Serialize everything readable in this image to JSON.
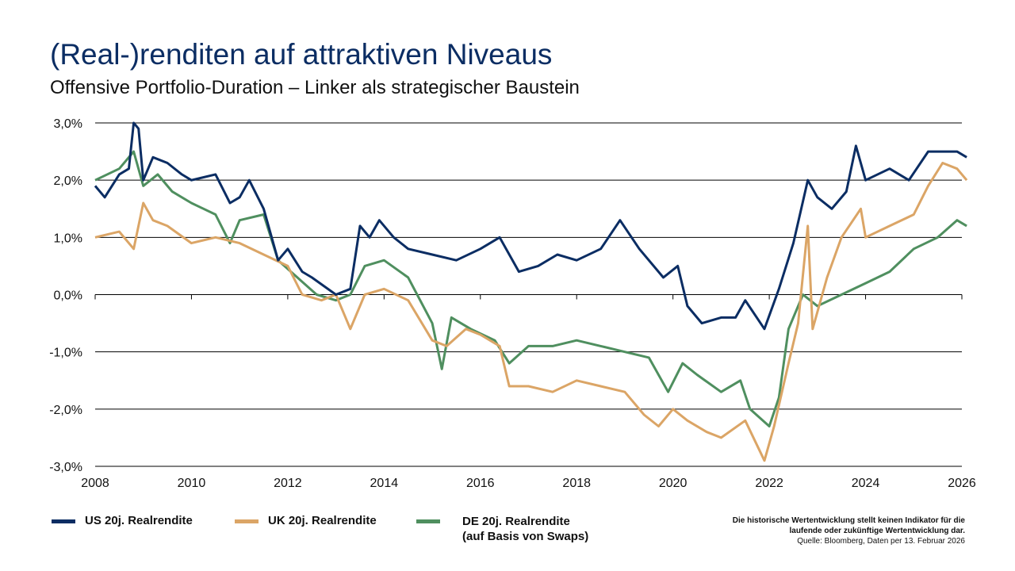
{
  "title": "(Real-)renditen auf attraktiven Niveaus",
  "subtitle": "Offensive Portfolio-Duration – Linker als strategischer Baustein",
  "note": {
    "line1": "Die historische Wertentwicklung stellt keinen Indikator für die",
    "line2": "laufende oder zukünftige Wertentwicklung dar.",
    "source": "Quelle: Bloomberg, Daten per 13. Februar 2026"
  },
  "chart_data": {
    "type": "line",
    "xlim": [
      2008,
      2026
    ],
    "ylim": [
      -3,
      3
    ],
    "x_ticks": [
      "2008",
      "2010",
      "2012",
      "2014",
      "2016",
      "2018",
      "2020",
      "2022",
      "2024",
      "2026"
    ],
    "y_ticks": [
      "3,0%",
      "2,0%",
      "1,0%",
      "0,0%",
      "-1,0%",
      "-2,0%",
      "-3,0%"
    ],
    "grid": "horizontal",
    "legend": "bottom",
    "series": [
      {
        "name": "US 20j. Realrendite",
        "color": "#0b2d63",
        "points": [
          [
            2008.0,
            1.9
          ],
          [
            2008.2,
            1.7
          ],
          [
            2008.5,
            2.1
          ],
          [
            2008.7,
            2.2
          ],
          [
            2008.8,
            3.0
          ],
          [
            2008.9,
            2.9
          ],
          [
            2009.0,
            2.0
          ],
          [
            2009.2,
            2.4
          ],
          [
            2009.5,
            2.3
          ],
          [
            2009.8,
            2.1
          ],
          [
            2010.0,
            2.0
          ],
          [
            2010.5,
            2.1
          ],
          [
            2010.8,
            1.6
          ],
          [
            2011.0,
            1.7
          ],
          [
            2011.2,
            2.0
          ],
          [
            2011.5,
            1.5
          ],
          [
            2011.8,
            0.6
          ],
          [
            2012.0,
            0.8
          ],
          [
            2012.3,
            0.4
          ],
          [
            2012.5,
            0.3
          ],
          [
            2013.0,
            0.0
          ],
          [
            2013.3,
            0.1
          ],
          [
            2013.5,
            1.2
          ],
          [
            2013.7,
            1.0
          ],
          [
            2013.9,
            1.3
          ],
          [
            2014.2,
            1.0
          ],
          [
            2014.5,
            0.8
          ],
          [
            2015.0,
            0.7
          ],
          [
            2015.5,
            0.6
          ],
          [
            2016.0,
            0.8
          ],
          [
            2016.4,
            1.0
          ],
          [
            2016.8,
            0.4
          ],
          [
            2017.2,
            0.5
          ],
          [
            2017.6,
            0.7
          ],
          [
            2018.0,
            0.6
          ],
          [
            2018.5,
            0.8
          ],
          [
            2018.9,
            1.3
          ],
          [
            2019.3,
            0.8
          ],
          [
            2019.8,
            0.3
          ],
          [
            2020.1,
            0.5
          ],
          [
            2020.3,
            -0.2
          ],
          [
            2020.6,
            -0.5
          ],
          [
            2021.0,
            -0.4
          ],
          [
            2021.3,
            -0.4
          ],
          [
            2021.5,
            -0.1
          ],
          [
            2021.9,
            -0.6
          ],
          [
            2022.2,
            0.1
          ],
          [
            2022.5,
            0.9
          ],
          [
            2022.8,
            2.0
          ],
          [
            2023.0,
            1.7
          ],
          [
            2023.3,
            1.5
          ],
          [
            2023.6,
            1.8
          ],
          [
            2023.8,
            2.6
          ],
          [
            2024.0,
            2.0
          ],
          [
            2024.5,
            2.2
          ],
          [
            2024.9,
            2.0
          ],
          [
            2025.3,
            2.5
          ],
          [
            2025.6,
            2.5
          ],
          [
            2025.9,
            2.5
          ],
          [
            2026.1,
            2.4
          ]
        ]
      },
      {
        "name": "UK 20j. Realrendite",
        "color": "#dba566",
        "points": [
          [
            2008.0,
            1.0
          ],
          [
            2008.5,
            1.1
          ],
          [
            2008.8,
            0.8
          ],
          [
            2009.0,
            1.6
          ],
          [
            2009.2,
            1.3
          ],
          [
            2009.5,
            1.2
          ],
          [
            2010.0,
            0.9
          ],
          [
            2010.5,
            1.0
          ],
          [
            2011.0,
            0.9
          ],
          [
            2011.5,
            0.7
          ],
          [
            2012.0,
            0.5
          ],
          [
            2012.3,
            0.0
          ],
          [
            2012.7,
            -0.1
          ],
          [
            2013.0,
            0.0
          ],
          [
            2013.3,
            -0.6
          ],
          [
            2013.6,
            0.0
          ],
          [
            2014.0,
            0.1
          ],
          [
            2014.5,
            -0.1
          ],
          [
            2015.0,
            -0.8
          ],
          [
            2015.3,
            -0.9
          ],
          [
            2015.7,
            -0.6
          ],
          [
            2016.0,
            -0.7
          ],
          [
            2016.4,
            -0.9
          ],
          [
            2016.6,
            -1.6
          ],
          [
            2017.0,
            -1.6
          ],
          [
            2017.5,
            -1.7
          ],
          [
            2018.0,
            -1.5
          ],
          [
            2018.5,
            -1.6
          ],
          [
            2019.0,
            -1.7
          ],
          [
            2019.4,
            -2.1
          ],
          [
            2019.7,
            -2.3
          ],
          [
            2020.0,
            -2.0
          ],
          [
            2020.3,
            -2.2
          ],
          [
            2020.7,
            -2.4
          ],
          [
            2021.0,
            -2.5
          ],
          [
            2021.5,
            -2.2
          ],
          [
            2021.9,
            -2.9
          ],
          [
            2022.1,
            -2.3
          ],
          [
            2022.4,
            -1.2
          ],
          [
            2022.6,
            -0.5
          ],
          [
            2022.8,
            1.2
          ],
          [
            2022.9,
            -0.6
          ],
          [
            2023.2,
            0.3
          ],
          [
            2023.5,
            1.0
          ],
          [
            2023.9,
            1.5
          ],
          [
            2024.0,
            1.0
          ],
          [
            2024.5,
            1.2
          ],
          [
            2025.0,
            1.4
          ],
          [
            2025.3,
            1.9
          ],
          [
            2025.6,
            2.3
          ],
          [
            2025.9,
            2.2
          ],
          [
            2026.1,
            2.0
          ]
        ]
      },
      {
        "name": "DE 20j. Realrendite",
        "name2": "(auf Basis von Swaps)",
        "color": "#4f8f5f",
        "points": [
          [
            2008.0,
            2.0
          ],
          [
            2008.5,
            2.2
          ],
          [
            2008.8,
            2.5
          ],
          [
            2009.0,
            1.9
          ],
          [
            2009.3,
            2.1
          ],
          [
            2009.6,
            1.8
          ],
          [
            2010.0,
            1.6
          ],
          [
            2010.5,
            1.4
          ],
          [
            2010.8,
            0.9
          ],
          [
            2011.0,
            1.3
          ],
          [
            2011.5,
            1.4
          ],
          [
            2011.8,
            0.6
          ],
          [
            2012.2,
            0.3
          ],
          [
            2012.6,
            0.0
          ],
          [
            2013.0,
            -0.1
          ],
          [
            2013.3,
            0.0
          ],
          [
            2013.6,
            0.5
          ],
          [
            2014.0,
            0.6
          ],
          [
            2014.5,
            0.3
          ],
          [
            2015.0,
            -0.5
          ],
          [
            2015.2,
            -1.3
          ],
          [
            2015.4,
            -0.4
          ],
          [
            2015.8,
            -0.6
          ],
          [
            2016.3,
            -0.8
          ],
          [
            2016.6,
            -1.2
          ],
          [
            2017.0,
            -0.9
          ],
          [
            2017.5,
            -0.9
          ],
          [
            2018.0,
            -0.8
          ],
          [
            2018.5,
            -0.9
          ],
          [
            2019.0,
            -1.0
          ],
          [
            2019.5,
            -1.1
          ],
          [
            2019.9,
            -1.7
          ],
          [
            2020.2,
            -1.2
          ],
          [
            2020.5,
            -1.4
          ],
          [
            2021.0,
            -1.7
          ],
          [
            2021.4,
            -1.5
          ],
          [
            2021.6,
            -2.0
          ],
          [
            2022.0,
            -2.3
          ],
          [
            2022.2,
            -1.8
          ],
          [
            2022.4,
            -0.6
          ],
          [
            2022.7,
            0.0
          ],
          [
            2023.0,
            -0.2
          ],
          [
            2023.5,
            0.0
          ],
          [
            2024.0,
            0.2
          ],
          [
            2024.5,
            0.4
          ],
          [
            2025.0,
            0.8
          ],
          [
            2025.5,
            1.0
          ],
          [
            2025.9,
            1.3
          ],
          [
            2026.1,
            1.2
          ]
        ]
      }
    ]
  }
}
